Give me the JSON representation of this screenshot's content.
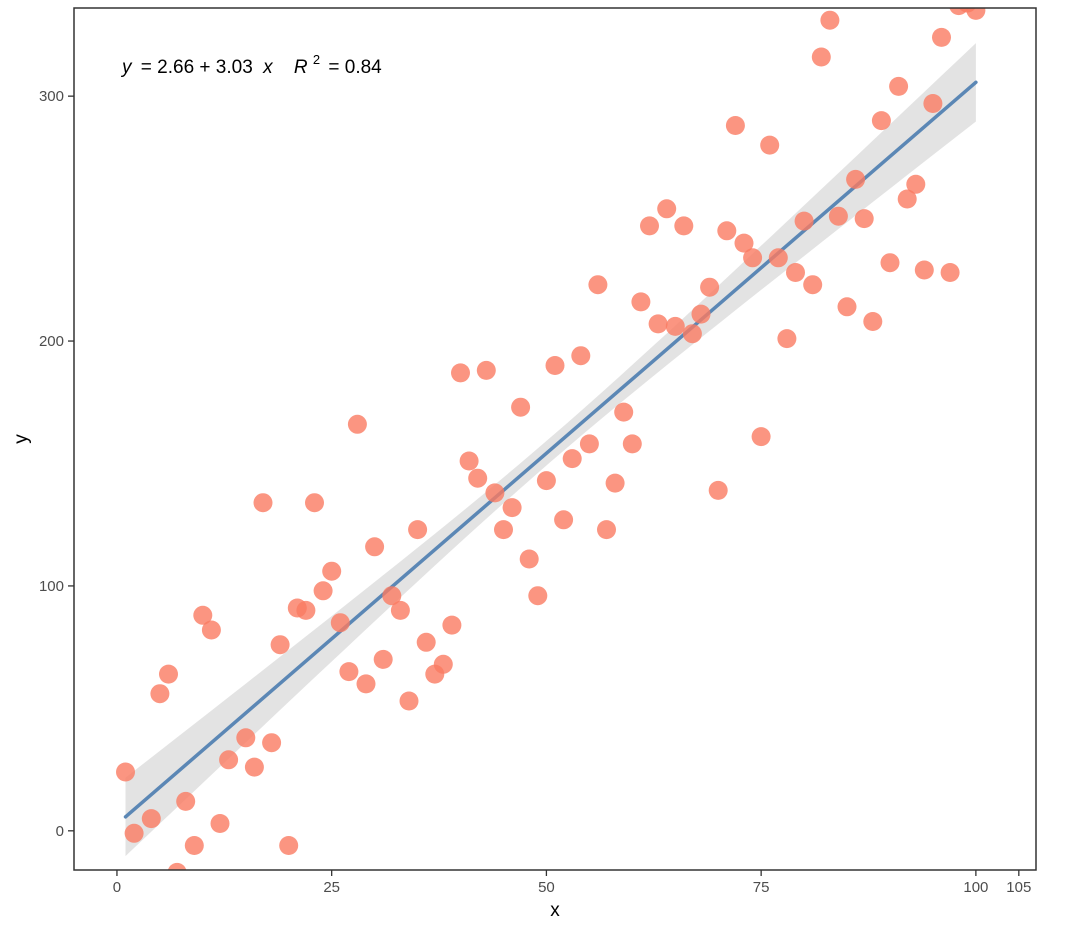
{
  "chart_data": {
    "type": "scatter",
    "title": "",
    "xlabel": "x",
    "ylabel": "y",
    "xlim": [
      -5,
      107
    ],
    "ylim": [
      -16,
      336
    ],
    "x_ticks": [
      0,
      25,
      50,
      75,
      100,
      105
    ],
    "y_ticks": [
      0,
      100,
      200,
      300
    ],
    "grid": false,
    "colors": {
      "points": "#fa7a62",
      "fit_line": "#5b87b5",
      "confidence_band": "#d9d9d9"
    },
    "annotation": {
      "y_var": "y",
      "eq_rhs": "= 2.66 + 3.03",
      "x_var": "x",
      "r_label": "R",
      "r_exp": "2",
      "r_value": "= 0.84"
    },
    "fit": {
      "intercept": 2.66,
      "slope": 3.03,
      "x_range": [
        1,
        100
      ],
      "band_halfwidth_edge": 16,
      "band_halfwidth_center": 5
    },
    "points": [
      [
        1,
        24
      ],
      [
        2,
        -1
      ],
      [
        4,
        5
      ],
      [
        5,
        56
      ],
      [
        6,
        64
      ],
      [
        7,
        -17
      ],
      [
        8,
        12
      ],
      [
        9,
        -6
      ],
      [
        10,
        88
      ],
      [
        11,
        82
      ],
      [
        12,
        3
      ],
      [
        13,
        29
      ],
      [
        15,
        38
      ],
      [
        16,
        26
      ],
      [
        17,
        134
      ],
      [
        18,
        36
      ],
      [
        19,
        76
      ],
      [
        20,
        -6
      ],
      [
        21,
        91
      ],
      [
        22,
        90
      ],
      [
        23,
        134
      ],
      [
        24,
        98
      ],
      [
        25,
        106
      ],
      [
        26,
        85
      ],
      [
        27,
        65
      ],
      [
        28,
        166
      ],
      [
        29,
        60
      ],
      [
        30,
        116
      ],
      [
        31,
        70
      ],
      [
        32,
        96
      ],
      [
        33,
        90
      ],
      [
        34,
        53
      ],
      [
        35,
        123
      ],
      [
        36,
        77
      ],
      [
        37,
        64
      ],
      [
        38,
        68
      ],
      [
        39,
        84
      ],
      [
        40,
        187
      ],
      [
        41,
        151
      ],
      [
        42,
        144
      ],
      [
        43,
        188
      ],
      [
        44,
        138
      ],
      [
        45,
        123
      ],
      [
        46,
        132
      ],
      [
        47,
        173
      ],
      [
        48,
        111
      ],
      [
        49,
        96
      ],
      [
        50,
        143
      ],
      [
        51,
        190
      ],
      [
        52,
        127
      ],
      [
        53,
        152
      ],
      [
        54,
        194
      ],
      [
        55,
        158
      ],
      [
        56,
        223
      ],
      [
        57,
        123
      ],
      [
        58,
        142
      ],
      [
        59,
        171
      ],
      [
        60,
        158
      ],
      [
        61,
        216
      ],
      [
        62,
        247
      ],
      [
        63,
        207
      ],
      [
        64,
        254
      ],
      [
        65,
        206
      ],
      [
        66,
        247
      ],
      [
        67,
        203
      ],
      [
        68,
        211
      ],
      [
        69,
        222
      ],
      [
        70,
        139
      ],
      [
        71,
        245
      ],
      [
        72,
        288
      ],
      [
        73,
        240
      ],
      [
        74,
        234
      ],
      [
        75,
        161
      ],
      [
        76,
        280
      ],
      [
        77,
        234
      ],
      [
        78,
        201
      ],
      [
        79,
        228
      ],
      [
        80,
        249
      ],
      [
        81,
        223
      ],
      [
        82,
        316
      ],
      [
        83,
        331
      ],
      [
        84,
        251
      ],
      [
        85,
        214
      ],
      [
        86,
        266
      ],
      [
        87,
        250
      ],
      [
        88,
        208
      ],
      [
        89,
        290
      ],
      [
        90,
        232
      ],
      [
        91,
        304
      ],
      [
        92,
        258
      ],
      [
        93,
        264
      ],
      [
        94,
        229
      ],
      [
        95,
        297
      ],
      [
        96,
        324
      ],
      [
        97,
        228
      ],
      [
        98,
        337
      ],
      [
        99,
        338
      ],
      [
        100,
        335
      ]
    ]
  }
}
